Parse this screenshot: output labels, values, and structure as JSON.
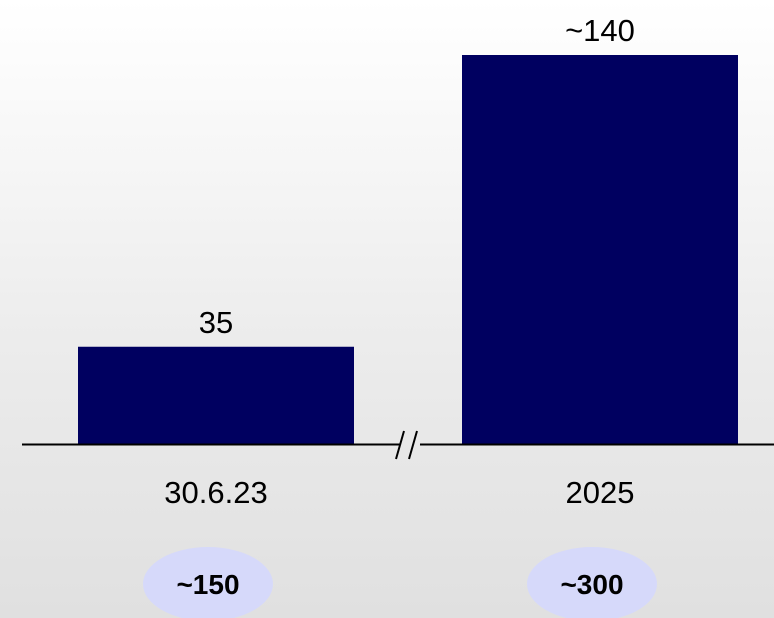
{
  "chart_data": {
    "type": "bar",
    "categories": [
      "30.6.23",
      "2025"
    ],
    "values": [
      35,
      140
    ],
    "value_labels": [
      "35",
      "~140"
    ],
    "axis_break": true,
    "badges": [
      "~150",
      "~300"
    ],
    "title": "",
    "xlabel": "",
    "ylabel": "",
    "ylim": [
      0,
      140
    ],
    "grid": false,
    "colors": {
      "bar": "#000060",
      "badge": "#d6d9fa",
      "axis": "#000000"
    }
  }
}
